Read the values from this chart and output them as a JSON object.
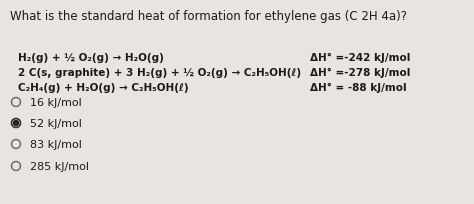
{
  "title": "What is the standard heat of formation for ethylene gas (C 2H 4a)?",
  "background_color": "#e8e4e0",
  "text_color": "#1a1a1a",
  "equation1_left": "H₂(g) + ½ O₂(g) → H₂O(g)",
  "equation2_left": "2 C(s, graphite) + 3 H₂(g) + ½ O₂(g) → C₂H₅OH(ℓ)",
  "equation3_left": "C₂H₄(g) + H₂O(g) → C₂H₅OH(ℓ)",
  "equation1_right": "ΔH° =-242 kJ/mol",
  "equation2_right": "ΔH° =-278 kJ/mol",
  "equation3_right": "ΔH° = -88 kJ/mol",
  "options": [
    "16 kJ/mol",
    "52 kJ/mol",
    "83 kJ/mol",
    "285 kJ/mol"
  ],
  "selected_option": 1,
  "font_size_title": 8.5,
  "font_size_equations": 7.5,
  "font_size_options": 8.0
}
